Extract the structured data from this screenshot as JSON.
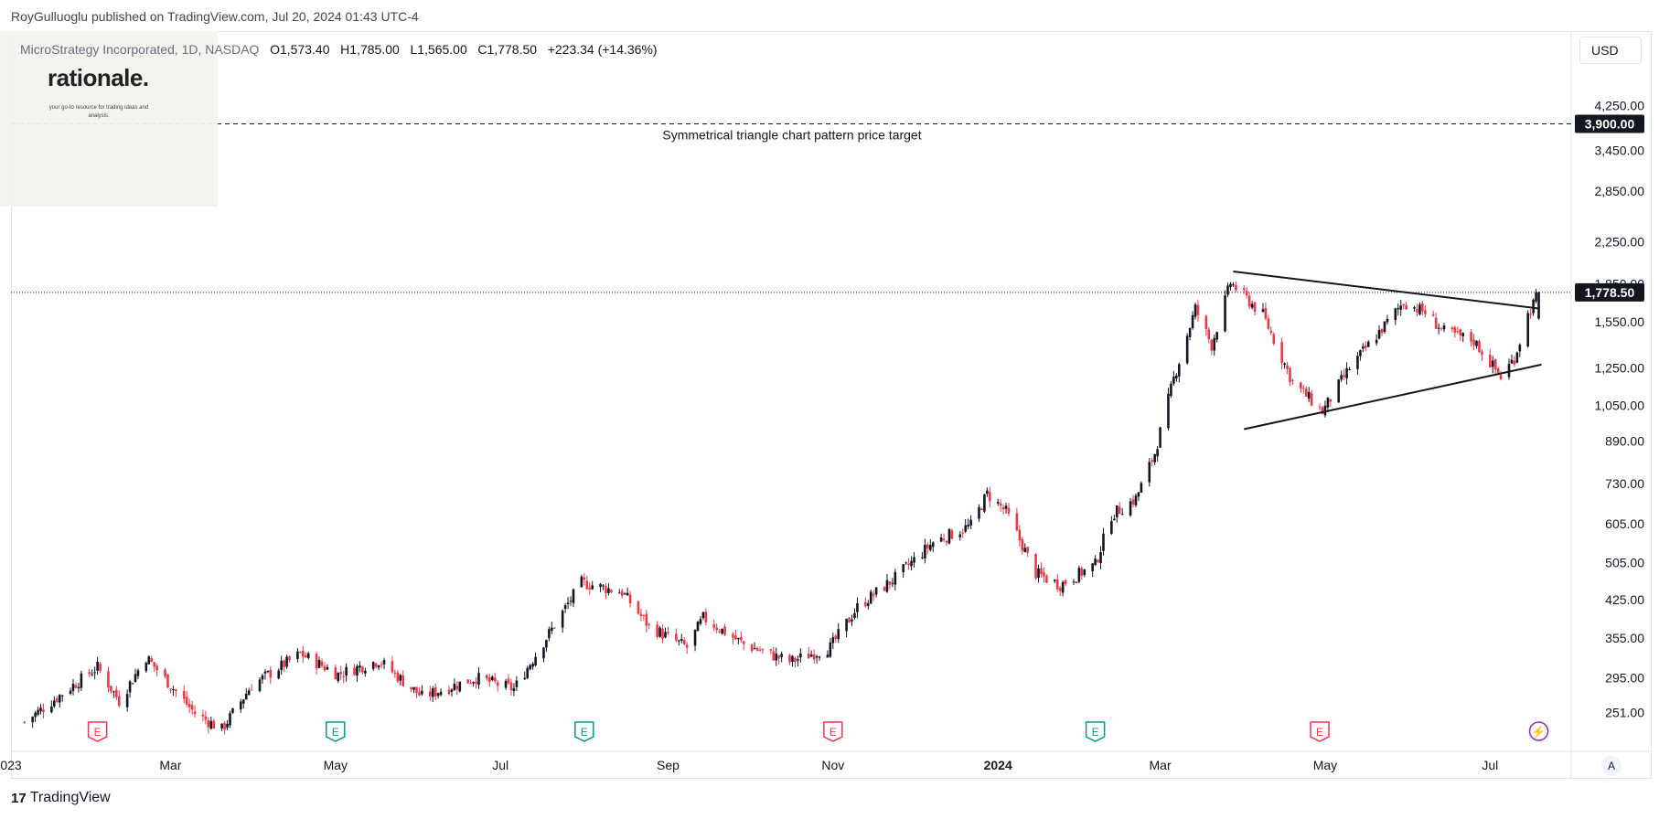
{
  "header": {
    "publisher": "RoyGulluoglu published on TradingView.com, Jul 20, 2024 01:43 UTC-4"
  },
  "symbol": {
    "name": "MicroStrategy Incorporated, 1D, NASDAQ",
    "open": "O1,573.40",
    "high": "H1,785.00",
    "low": "L1,565.00",
    "close": "C1,778.50",
    "change": "+223.34 (+14.36%)"
  },
  "logo": {
    "title": "rationale.",
    "tagline": "your go-to resource for trading ideas and analysis."
  },
  "toolbar": {
    "currency": "USD",
    "auto_label": "A"
  },
  "footer": {
    "brand": "TradingView",
    "brand_mark": "17"
  },
  "colors": {
    "up": "#131722",
    "down": "#f23645",
    "earnings_red": "#f23645",
    "earnings_green": "#089981",
    "dividend_purple": "#9c27b0",
    "price_label_bg": "#131722"
  },
  "chart_data": {
    "type": "candlestick",
    "title": "",
    "y_scale": "log",
    "ylim": [
      230,
      5200
    ],
    "xlim": [
      "2023-01-01",
      "2024-07-31"
    ],
    "y_ticks": [
      "4,250.00",
      "3,450.00",
      "2,850.00",
      "2,250.00",
      "1,850.00",
      "1,550.00",
      "1,250.00",
      "1,050.00",
      "890.00",
      "730.00",
      "605.00",
      "505.00",
      "425.00",
      "355.00",
      "295.00",
      "251.00"
    ],
    "y_tick_values": [
      4250,
      3450,
      2850,
      2250,
      1850,
      1550,
      1250,
      1050,
      890,
      730,
      605,
      505,
      425,
      355,
      295,
      251
    ],
    "x_ticks": [
      {
        "label": "023",
        "date": "2023-01-01",
        "bold": false
      },
      {
        "label": "Mar",
        "date": "2023-03-01",
        "bold": false
      },
      {
        "label": "May",
        "date": "2023-05-01",
        "bold": false
      },
      {
        "label": "Jul",
        "date": "2023-07-01",
        "bold": false
      },
      {
        "label": "Sep",
        "date": "2023-09-01",
        "bold": false
      },
      {
        "label": "Nov",
        "date": "2023-11-01",
        "bold": false
      },
      {
        "label": "2024",
        "date": "2024-01-01",
        "bold": true
      },
      {
        "label": "Mar",
        "date": "2024-03-01",
        "bold": false
      },
      {
        "label": "May",
        "date": "2024-05-01",
        "bold": false
      },
      {
        "label": "Jul",
        "date": "2024-07-01",
        "bold": false
      }
    ],
    "price_path": [
      [
        "2023-01-06",
        240
      ],
      [
        "2023-01-24",
        285
      ],
      [
        "2023-02-02",
        310
      ],
      [
        "2023-02-10",
        265
      ],
      [
        "2023-02-20",
        325
      ],
      [
        "2023-03-10",
        250
      ],
      [
        "2023-03-20",
        232
      ],
      [
        "2023-03-31",
        285
      ],
      [
        "2023-04-18",
        330
      ],
      [
        "2023-05-02",
        300
      ],
      [
        "2023-05-17",
        320
      ],
      [
        "2023-06-02",
        270
      ],
      [
        "2023-06-22",
        295
      ],
      [
        "2023-07-06",
        280
      ],
      [
        "2023-07-20",
        370
      ],
      [
        "2023-07-31",
        460
      ],
      [
        "2023-08-15",
        440
      ],
      [
        "2023-08-25",
        375
      ],
      [
        "2023-09-08",
        340
      ],
      [
        "2023-09-14",
        390
      ],
      [
        "2023-09-29",
        345
      ],
      [
        "2023-10-16",
        318
      ],
      [
        "2023-10-31",
        340
      ],
      [
        "2023-11-10",
        410
      ],
      [
        "2023-11-24",
        470
      ],
      [
        "2023-12-08",
        555
      ],
      [
        "2023-12-22",
        600
      ],
      [
        "2023-12-28",
        695
      ],
      [
        "2024-01-04",
        640
      ],
      [
        "2024-01-15",
        480
      ],
      [
        "2024-01-24",
        455
      ],
      [
        "2024-02-06",
        500
      ],
      [
        "2024-02-12",
        630
      ],
      [
        "2024-02-21",
        680
      ],
      [
        "2024-02-28",
        840
      ],
      [
        "2024-03-06",
        1190
      ],
      [
        "2024-03-14",
        1650
      ],
      [
        "2024-03-20",
        1390
      ],
      [
        "2024-03-27",
        1860
      ],
      [
        "2024-04-08",
        1600
      ],
      [
        "2024-04-19",
        1170
      ],
      [
        "2024-04-30",
        1020
      ],
      [
        "2024-05-10",
        1250
      ],
      [
        "2024-05-22",
        1500
      ],
      [
        "2024-05-30",
        1700
      ],
      [
        "2024-06-07",
        1620
      ],
      [
        "2024-06-14",
        1480
      ],
      [
        "2024-06-25",
        1420
      ],
      [
        "2024-07-05",
        1200
      ],
      [
        "2024-07-10",
        1310
      ],
      [
        "2024-07-15",
        1600
      ],
      [
        "2024-07-19",
        1778.5
      ]
    ],
    "last_price": 1778.5,
    "last_price_label": "1,778.50",
    "target_price": 3900,
    "target_label": "3,900.00",
    "annotation": "Symmetrical triangle chart pattern price target",
    "trendlines": [
      {
        "name": "upper",
        "from": [
          "2024-03-28",
          1960
        ],
        "to": [
          "2024-07-19",
          1650
        ]
      },
      {
        "name": "lower",
        "from": [
          "2024-04-01",
          940
        ],
        "to": [
          "2024-07-20",
          1270
        ]
      }
    ],
    "events": [
      {
        "type": "earnings",
        "date": "2023-02-02",
        "color": "red",
        "label": "E"
      },
      {
        "type": "earnings",
        "date": "2023-05-01",
        "color": "green",
        "label": "E"
      },
      {
        "type": "earnings",
        "date": "2023-08-01",
        "color": "green",
        "label": "E"
      },
      {
        "type": "earnings",
        "date": "2023-11-01",
        "color": "red",
        "label": "E"
      },
      {
        "type": "earnings",
        "date": "2024-02-06",
        "color": "green",
        "label": "E"
      },
      {
        "type": "earnings",
        "date": "2024-04-29",
        "color": "red",
        "label": "E"
      },
      {
        "type": "split",
        "date": "2024-07-19",
        "color": "purple",
        "label": "⚡"
      }
    ]
  }
}
